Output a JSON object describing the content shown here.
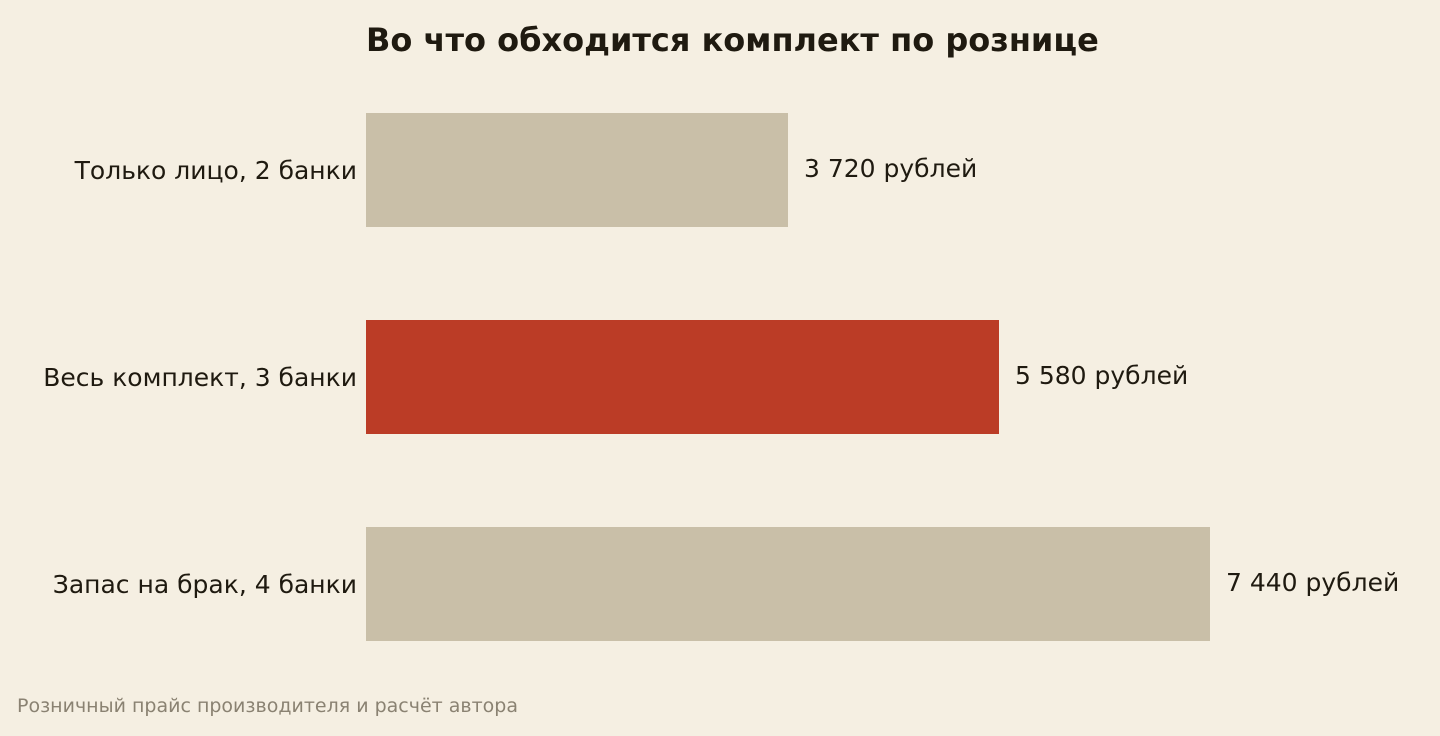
{
  "chart_data": {
    "type": "bar",
    "orientation": "horizontal",
    "title": "Во что обходится комплект по рознице",
    "categories": [
      "Только лицо, 2 банки",
      "Весь комплект, 3 банки",
      "Запас на брак, 4 банки"
    ],
    "values": [
      3720,
      5580,
      7440
    ],
    "value_labels": [
      "3 720 рублей",
      "5 580 рублей",
      "7 440 рублей"
    ],
    "unit": "рублей",
    "xlim": [
      0,
      7440
    ],
    "grid": false,
    "highlight_index": 1,
    "colors": {
      "bar": "#c9bfa8",
      "highlight": "#bb3c26",
      "text": "#1f1a10",
      "background": "#f5efe2"
    }
  },
  "footer": {
    "source": "Розничный прайс производителя и расчёт автора"
  }
}
